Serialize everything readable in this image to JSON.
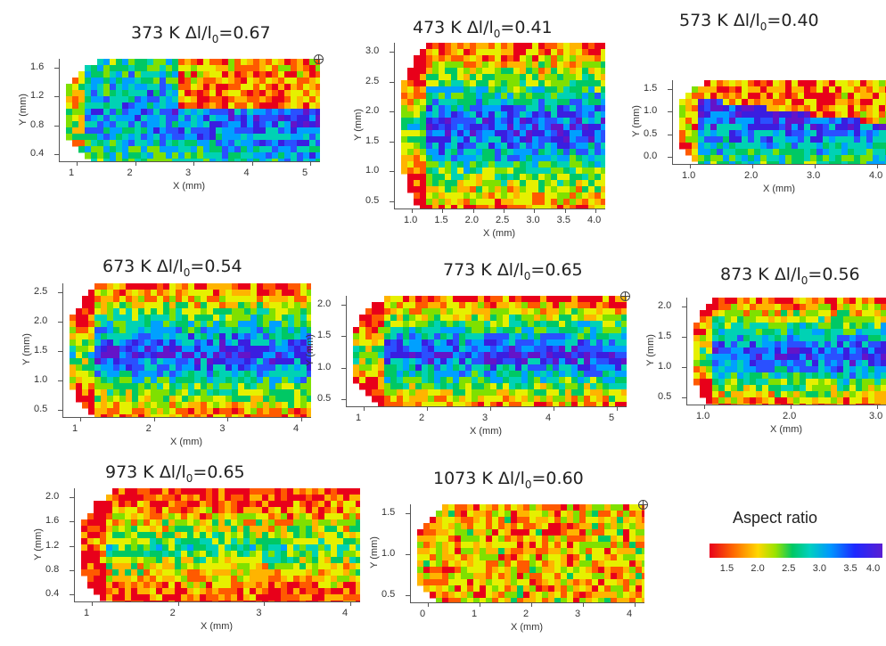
{
  "chart_data": [
    {
      "type": "heatmap",
      "title_temp": "373 K",
      "title_strain_label": "Δl/l",
      "title_strain_sub": "0",
      "title_strain_value": "=0.67",
      "xlabel": "X (mm)",
      "ylabel": "Y (mm)",
      "xticks": [
        "1",
        "2",
        "3",
        "4",
        "5"
      ],
      "yticks": [
        "0.4",
        "0.8",
        "1.2",
        "1.6"
      ],
      "pattern": "wedge-low-right"
    },
    {
      "type": "heatmap",
      "title_temp": "473 K",
      "title_strain_label": "Δl/l",
      "title_strain_sub": "0",
      "title_strain_value": "=0.41",
      "xlabel": "X (mm)",
      "ylabel": "Y (mm)",
      "xticks": [
        "1.0",
        "1.5",
        "2.0",
        "2.5",
        "3.0",
        "3.5",
        "4.0"
      ],
      "yticks": [
        "0.5",
        "1.0",
        "1.5",
        "2.0",
        "2.5",
        "3.0"
      ],
      "pattern": "wedge-center"
    },
    {
      "type": "heatmap",
      "title_temp": "573 K",
      "title_strain_label": "Δl/l",
      "title_strain_sub": "0",
      "title_strain_value": "=0.40",
      "xlabel": "X (mm)",
      "ylabel": "Y (mm)",
      "xticks": [
        "1.0",
        "2.0",
        "3.0",
        "4.0"
      ],
      "yticks": [
        "0.0",
        "0.5",
        "1.0",
        "1.5"
      ],
      "pattern": "band-diagonal"
    },
    {
      "type": "heatmap",
      "title_temp": "673 K",
      "title_strain_label": "Δl/l",
      "title_strain_sub": "0",
      "title_strain_value": "=0.54",
      "xlabel": "X (mm)",
      "ylabel": "Y (mm)",
      "xticks": [
        "1",
        "2",
        "3",
        "4"
      ],
      "yticks": [
        "0.5",
        "1.0",
        "1.5",
        "2.0",
        "2.5"
      ],
      "pattern": "wedge-center"
    },
    {
      "type": "heatmap",
      "title_temp": "773 K",
      "title_strain_label": "Δl/l",
      "title_strain_sub": "0",
      "title_strain_value": "=0.65",
      "xlabel": "X (mm)",
      "ylabel": "Y (mm)",
      "xticks": [
        "1",
        "2",
        "3",
        "4",
        "5"
      ],
      "yticks": [
        "0.5",
        "1.0",
        "1.5",
        "2.0"
      ],
      "pattern": "wedge-center"
    },
    {
      "type": "heatmap",
      "title_temp": "873 K",
      "title_strain_label": "Δl/l",
      "title_strain_sub": "0",
      "title_strain_value": "=0.56",
      "xlabel": "X (mm)",
      "ylabel": "Y (mm)",
      "xticks": [
        "1.0",
        "2.0",
        "3.0"
      ],
      "yticks": [
        "0.5",
        "1.0",
        "1.5",
        "2.0"
      ],
      "pattern": "wedge-center"
    },
    {
      "type": "heatmap",
      "title_temp": "973 K",
      "title_strain_label": "Δl/l",
      "title_strain_sub": "0",
      "title_strain_value": "=0.65",
      "xlabel": "X (mm)",
      "ylabel": "Y (mm)",
      "xticks": [
        "1",
        "2",
        "3",
        "4"
      ],
      "yticks": [
        "0.4",
        "0.8",
        "1.2",
        "1.6",
        "2.0"
      ],
      "pattern": "mixed"
    },
    {
      "type": "heatmap",
      "title_temp": "1073 K",
      "title_strain_label": "Δl/l",
      "title_strain_sub": "0",
      "title_strain_value": "=0.60",
      "xlabel": "X (mm)",
      "ylabel": "Y (mm)",
      "xticks": [
        "0",
        "1",
        "2",
        "3",
        "4"
      ],
      "yticks": [
        "0.5",
        "1.0",
        "1.5"
      ],
      "pattern": "mostly-red"
    }
  ],
  "legend": {
    "title": "Aspect ratio",
    "ticks": [
      "1.5",
      "2.0",
      "2.5",
      "3.0",
      "3.5",
      "4.0"
    ],
    "range": [
      1.2,
      4.0
    ]
  },
  "colors": {
    "low": "#e8001a",
    "mid_low": "#ffd700",
    "mid": "#00c864",
    "mid_high": "#0096ff",
    "high": "#5a1ed2"
  }
}
